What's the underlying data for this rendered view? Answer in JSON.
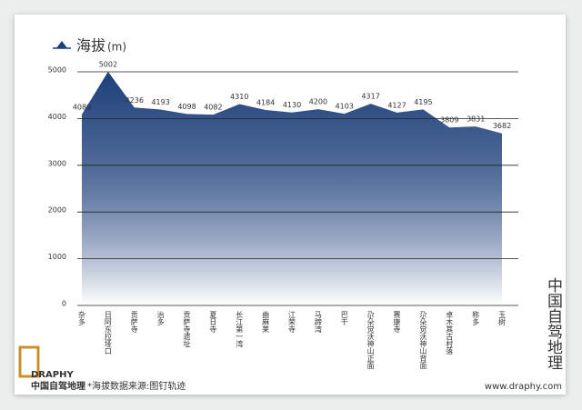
{
  "chart_data": {
    "type": "area",
    "title": "海拔",
    "y_unit": "(m)",
    "categories": [
      "杂多",
      "日阿东拉垭口",
      "贡萨寺",
      "治多",
      "贡萨寺遗址",
      "夏日寺",
      "长江第一湾",
      "曲麻莱",
      "江荣寺",
      "马蹄湾",
      "巴干",
      "尕朵觉沃神山正面",
      "赛康寺",
      "尕朵觉沃神山背面",
      "卓木其古村落",
      "称多",
      "玉树"
    ],
    "values": [
      4089,
      5002,
      4236,
      4193,
      4098,
      4082,
      4310,
      4184,
      4130,
      4200,
      4103,
      4317,
      4127,
      4195,
      3809,
      3831,
      3682
    ],
    "color": "#1d3f7a",
    "ylim": [
      0,
      5000
    ],
    "yticks": [
      0,
      1000,
      2000,
      3000,
      4000,
      5000
    ],
    "grid": true
  },
  "branding": {
    "side_title": "中国自驾地理",
    "logo_en": "DRAPHY",
    "logo_cn": "中国自驾地理",
    "source": "*海拔数据来源:图钉轨迹",
    "website": "www.draphy.com"
  }
}
